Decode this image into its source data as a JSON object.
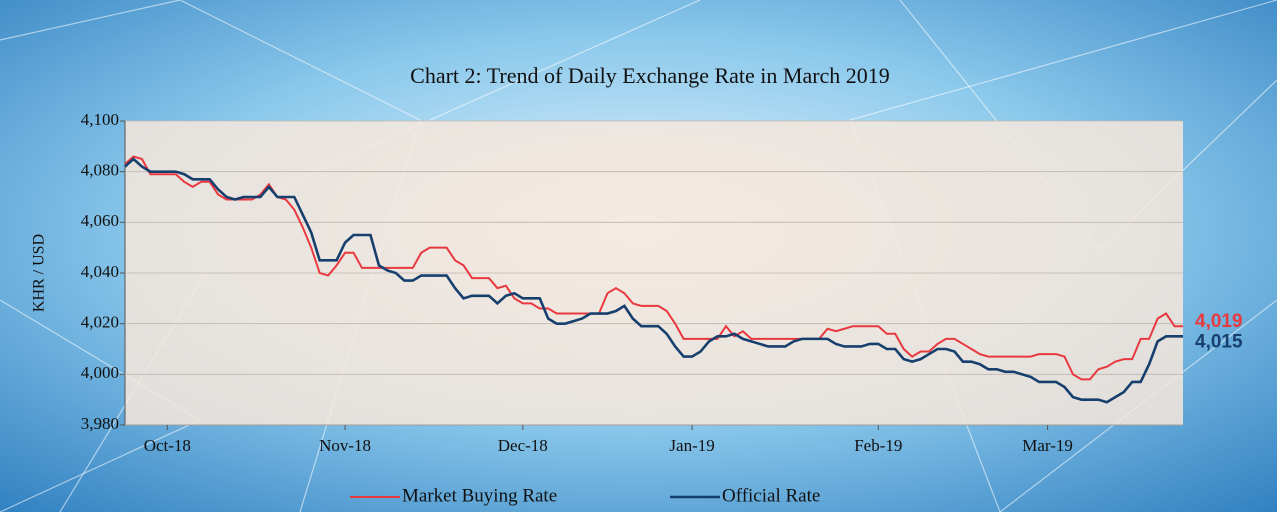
{
  "chart_data": {
    "type": "line",
    "title": "Chart 2: Trend of Daily Exchange Rate in March 2019",
    "y_label": "KHR / USD",
    "xlim": [
      0,
      125
    ],
    "xticks": [
      {
        "value": 5,
        "label": "Oct-18"
      },
      {
        "value": 26,
        "label": "Nov-18"
      },
      {
        "value": 47,
        "label": "Dec-18"
      },
      {
        "value": 67,
        "label": "Jan-19"
      },
      {
        "value": 89,
        "label": "Feb-19"
      },
      {
        "value": 109,
        "label": "Mar-19"
      }
    ],
    "ylim": [
      3980,
      4100
    ],
    "yticks": [
      {
        "value": 3980,
        "label": "3,980"
      },
      {
        "value": 4000,
        "label": "4,000"
      },
      {
        "value": 4020,
        "label": "4,020"
      },
      {
        "value": 4040,
        "label": "4,040"
      },
      {
        "value": 4060,
        "label": "4,060"
      },
      {
        "value": 4080,
        "label": "4,080"
      },
      {
        "value": 4100,
        "label": "4,100"
      }
    ],
    "grid": true,
    "legend": "bottom",
    "series": [
      {
        "name": "Market Buying Rate",
        "color": "#e8393f",
        "last_label": "4,019",
        "values": [
          4083,
          4086,
          4085,
          4079,
          4079,
          4079,
          4079,
          4076,
          4074,
          4076,
          4076,
          4071,
          4069,
          4069,
          4069,
          4069,
          4071,
          4075,
          4070,
          4069,
          4065,
          4058,
          4050,
          4040,
          4039,
          4043,
          4048,
          4048,
          4042,
          4042,
          4042,
          4042,
          4042,
          4042,
          4042,
          4048,
          4050,
          4050,
          4050,
          4045,
          4043,
          4038,
          4038,
          4038,
          4034,
          4035,
          4030,
          4028,
          4028,
          4026,
          4026,
          4024,
          4024,
          4024,
          4024,
          4024,
          4024,
          4032,
          4034,
          4032,
          4028,
          4027,
          4027,
          4027,
          4025,
          4020,
          4014,
          4014,
          4014,
          4014,
          4014,
          4019,
          4015,
          4017,
          4014,
          4014,
          4014,
          4014,
          4014,
          4014,
          4014,
          4014,
          4014,
          4018,
          4017,
          4018,
          4019,
          4019,
          4019,
          4019,
          4016,
          4016,
          4010,
          4007,
          4009,
          4009,
          4012,
          4014,
          4014,
          4012,
          4010,
          4008,
          4007,
          4007,
          4007,
          4007,
          4007,
          4007,
          4008,
          4008,
          4008,
          4007,
          4000,
          3998,
          3998,
          4002,
          4003,
          4005,
          4006,
          4006,
          4014,
          4014,
          4022,
          4024,
          4019,
          4019
        ]
      },
      {
        "name": "Official Rate",
        "color": "#173f6e",
        "last_label": "4,015",
        "values": [
          4082,
          4085,
          4082,
          4080,
          4080,
          4080,
          4080,
          4079,
          4077,
          4077,
          4077,
          4073,
          4070,
          4069,
          4070,
          4070,
          4070,
          4074,
          4070,
          4070,
          4070,
          4063,
          4056,
          4045,
          4045,
          4045,
          4052,
          4055,
          4055,
          4055,
          4043,
          4041,
          4040,
          4037,
          4037,
          4039,
          4039,
          4039,
          4039,
          4034,
          4030,
          4031,
          4031,
          4031,
          4028,
          4031,
          4032,
          4030,
          4030,
          4030,
          4022,
          4020,
          4020,
          4021,
          4022,
          4024,
          4024,
          4024,
          4025,
          4027,
          4022,
          4019,
          4019,
          4019,
          4016,
          4011,
          4007,
          4007,
          4009,
          4013,
          4015,
          4015,
          4016,
          4014,
          4013,
          4012,
          4011,
          4011,
          4011,
          4013,
          4014,
          4014,
          4014,
          4014,
          4012,
          4011,
          4011,
          4011,
          4012,
          4012,
          4010,
          4010,
          4006,
          4005,
          4006,
          4008,
          4010,
          4010,
          4009,
          4005,
          4005,
          4004,
          4002,
          4002,
          4001,
          4001,
          4000,
          3999,
          3997,
          3997,
          3997,
          3995,
          3991,
          3990,
          3990,
          3990,
          3989,
          3991,
          3993,
          3997,
          3997,
          4004,
          4013,
          4015,
          4015,
          4015
        ]
      }
    ]
  }
}
